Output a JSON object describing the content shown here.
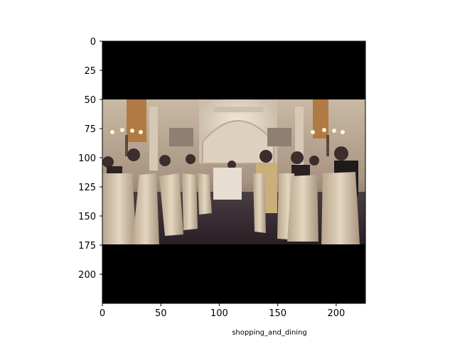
{
  "chart_data": {
    "type": "image",
    "title": "",
    "xlabel": "",
    "ylabel": "",
    "xlim": [
      0,
      225
    ],
    "ylim": [
      225,
      0
    ],
    "xticks": [
      0,
      50,
      100,
      150,
      200
    ],
    "yticks": [
      0,
      25,
      50,
      75,
      100,
      125,
      150,
      175,
      200
    ],
    "image_extent_y": [
      50,
      174
    ],
    "letterbox_color": "#000000",
    "caption": "shopping_and_dining",
    "scene": "banquet-hall"
  }
}
